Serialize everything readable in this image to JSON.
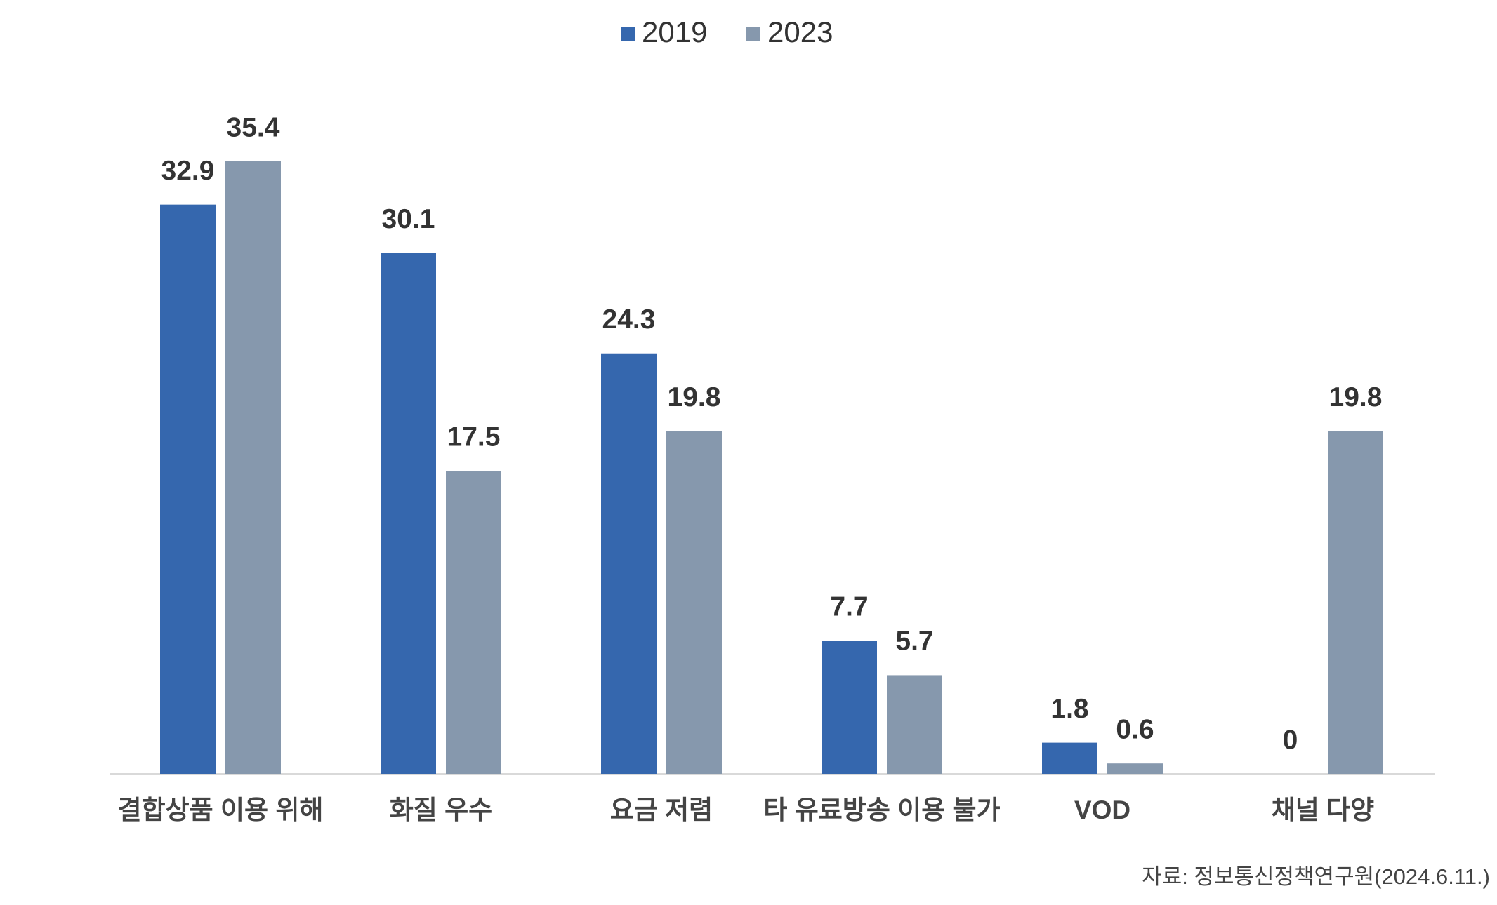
{
  "chart_data": {
    "type": "bar",
    "categories": [
      "결합상품 이용 위해",
      "화질 우수",
      "요금 저렴",
      "타 유료방송 이용 불가",
      "VOD",
      "채널 다양"
    ],
    "series": [
      {
        "name": "2019",
        "color": "#3567ae",
        "values": [
          32.9,
          30.1,
          24.3,
          7.7,
          1.8,
          0
        ]
      },
      {
        "name": "2023",
        "color": "#8698ad",
        "values": [
          35.4,
          17.5,
          19.8,
          5.7,
          0.6,
          19.8
        ]
      }
    ],
    "source": "자료: 정보통신정책연구원(2024.6.11.)",
    "legend": "top"
  }
}
